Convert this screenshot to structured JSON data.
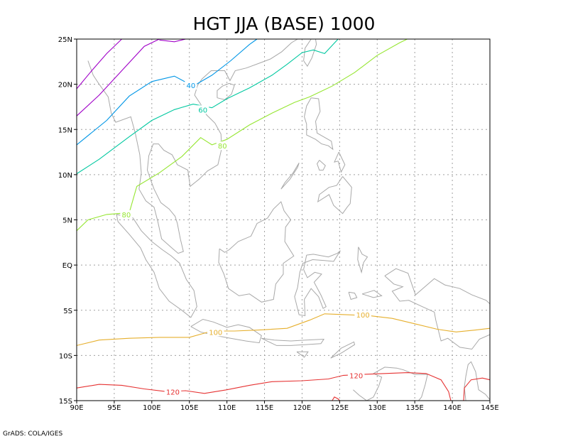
{
  "title": "HGT JJA (BASE) 1000",
  "credit": "GrADS: COLA/IGES",
  "colors": {
    "c20": "#a000c8",
    "c40": "#0096e6",
    "c60": "#00c8a0",
    "c80": "#96e632",
    "c100": "#e6af2d",
    "c120": "#e63232",
    "coast": "#a8a8a8",
    "grid": "#a0a0a0"
  },
  "chart_data": {
    "type": "contour-map",
    "variable": "HGT",
    "season": "JJA",
    "level": "1000",
    "xlim": [
      90,
      145
    ],
    "ylim": [
      -15,
      25
    ],
    "x_tick_labels": [
      "90E",
      "95E",
      "100E",
      "105E",
      "110E",
      "115E",
      "120E",
      "125E",
      "130E",
      "135E",
      "140E",
      "145E"
    ],
    "y_tick_labels": [
      "15S",
      "10S",
      "5S",
      "EQ",
      "5N",
      "10N",
      "15N",
      "20N",
      "25N"
    ],
    "contour_labels": [
      {
        "text": "40",
        "lon": 105.2,
        "lat": 19.9,
        "color": "c40"
      },
      {
        "text": "60",
        "lon": 106.8,
        "lat": 17.2,
        "color": "c60"
      },
      {
        "text": "80",
        "lon": 109.4,
        "lat": 13.2,
        "color": "c80"
      },
      {
        "text": "80",
        "lon": 96.6,
        "lat": 5.6,
        "color": "c80"
      },
      {
        "text": "100",
        "lon": 128.1,
        "lat": -5.5,
        "color": "c100"
      },
      {
        "text": "100",
        "lon": 108.5,
        "lat": -7.4,
        "color": "c100"
      },
      {
        "text": "120",
        "lon": 127.2,
        "lat": -12.2,
        "color": "c120"
      },
      {
        "text": "120",
        "lon": 102.8,
        "lat": -14.0,
        "color": "c120"
      }
    ],
    "contours": [
      {
        "level": 20,
        "color": "c20",
        "points": [
          [
            90,
            19.5
          ],
          [
            92,
            21.5
          ],
          [
            94,
            23.4
          ],
          [
            96,
            25
          ]
        ]
      },
      {
        "level": 20,
        "color": "c20",
        "points": [
          [
            90,
            16.5
          ],
          [
            93,
            18.8
          ],
          [
            96,
            21.5
          ],
          [
            99,
            24.2
          ],
          [
            101,
            25
          ]
        ]
      },
      {
        "level": 20,
        "color": "c20",
        "points": [
          [
            101,
            24.9
          ],
          [
            103,
            24.7
          ],
          [
            104.5,
            25
          ]
        ]
      },
      {
        "level": 40,
        "color": "c40",
        "points": [
          [
            90,
            13.3
          ],
          [
            94,
            16
          ],
          [
            97,
            18.7
          ],
          [
            100,
            20.3
          ],
          [
            103,
            20.9
          ],
          [
            105.5,
            19.8
          ],
          [
            108,
            21
          ],
          [
            110.5,
            22.6
          ],
          [
            113,
            24.4
          ],
          [
            114,
            25
          ]
        ]
      },
      {
        "level": 60,
        "color": "c60",
        "points": [
          [
            90,
            10.1
          ],
          [
            93,
            11.7
          ],
          [
            97,
            14.2
          ],
          [
            100,
            16
          ],
          [
            103,
            17.2
          ],
          [
            105.5,
            17.8
          ],
          [
            108,
            17.4
          ],
          [
            110,
            18.4
          ],
          [
            113,
            19.6
          ],
          [
            116,
            21
          ],
          [
            118,
            22.2
          ],
          [
            120,
            23.5
          ],
          [
            121.5,
            23.8
          ],
          [
            123,
            23.4
          ],
          [
            124.8,
            25
          ]
        ]
      },
      {
        "level": 80,
        "color": "c80",
        "points": [
          [
            90,
            3.8
          ],
          [
            91.5,
            5
          ],
          [
            94,
            5.6
          ],
          [
            97,
            5.8
          ],
          [
            98,
            8.7
          ],
          [
            101,
            10.2
          ],
          [
            104,
            12
          ],
          [
            106.5,
            14.1
          ],
          [
            108,
            13.3
          ],
          [
            110,
            13.9
          ],
          [
            113,
            15.5
          ],
          [
            116,
            16.8
          ],
          [
            119,
            18
          ],
          [
            121,
            18.6
          ],
          [
            124,
            19.8
          ],
          [
            127,
            21.3
          ],
          [
            130,
            23.2
          ],
          [
            133,
            24.6
          ],
          [
            134,
            25
          ]
        ]
      },
      {
        "level": 100,
        "color": "c100",
        "points": [
          [
            90,
            -8.9
          ],
          [
            93,
            -8.3
          ],
          [
            97,
            -8.1
          ],
          [
            101,
            -8
          ],
          [
            105,
            -8
          ],
          [
            108,
            -7.3
          ],
          [
            111,
            -7.3
          ],
          [
            114,
            -7.2
          ],
          [
            118,
            -7
          ],
          [
            121,
            -6.1
          ],
          [
            123,
            -5.4
          ],
          [
            126,
            -5.5
          ],
          [
            129,
            -5.6
          ],
          [
            132,
            -5.9
          ],
          [
            135,
            -6.5
          ],
          [
            138,
            -7.1
          ],
          [
            140.5,
            -7.4
          ],
          [
            143,
            -7.2
          ],
          [
            145,
            -7
          ]
        ]
      },
      {
        "level": 120,
        "color": "c120",
        "points": [
          [
            90,
            -13.6
          ],
          [
            93,
            -13.2
          ],
          [
            96,
            -13.3
          ],
          [
            99,
            -13.7
          ],
          [
            102,
            -14
          ],
          [
            104.5,
            -13.9
          ],
          [
            107,
            -14.2
          ],
          [
            110,
            -13.8
          ],
          [
            113,
            -13.3
          ],
          [
            116,
            -12.9
          ],
          [
            120,
            -12.8
          ],
          [
            123.5,
            -12.6
          ],
          [
            125.5,
            -12.2
          ],
          [
            128,
            -12.1
          ],
          [
            131,
            -12
          ],
          [
            134,
            -11.9
          ],
          [
            136.5,
            -12
          ],
          [
            138.5,
            -12.7
          ],
          [
            139.5,
            -14
          ],
          [
            139.8,
            -15
          ]
        ]
      },
      {
        "level": 120,
        "color": "c120",
        "points": [
          [
            141.5,
            -15
          ],
          [
            141.6,
            -13.6
          ],
          [
            142.5,
            -12.7
          ],
          [
            144,
            -12.5
          ],
          [
            145,
            -12.7
          ]
        ]
      },
      {
        "level": 120,
        "color": "c120",
        "points": [
          [
            124,
            -15
          ],
          [
            124.3,
            -14.6
          ],
          [
            124.8,
            -14.8
          ],
          [
            125,
            -15
          ]
        ]
      }
    ]
  }
}
